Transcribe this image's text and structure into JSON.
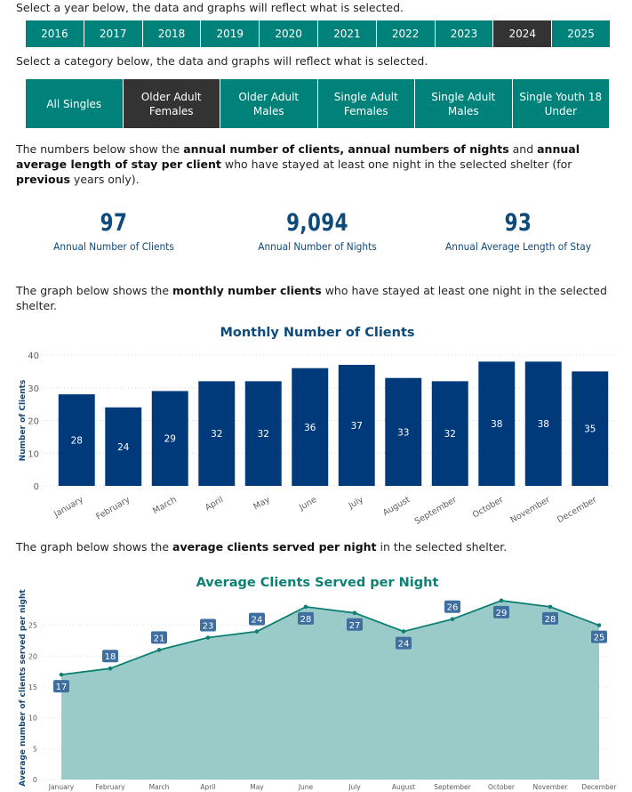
{
  "year_selector": {
    "prompt": "Select a year below, the data and graphs will reflect what is selected.",
    "years": [
      "2016",
      "2017",
      "2018",
      "2019",
      "2020",
      "2021",
      "2022",
      "2023",
      "2024",
      "2025"
    ],
    "selected": "2024"
  },
  "category_selector": {
    "prompt": "Select a category below, the data and graphs will reflect what is selected.",
    "categories": [
      "All Singles",
      "Older Adult Females",
      "Older Adult Males",
      "Single Adult Females",
      "Single Adult Males",
      "Single Youth 18 Under"
    ],
    "selected": "Older Adult Females"
  },
  "intro_text": {
    "p1": "The numbers below show the ",
    "b1": "annual number of clients, annual numbers of nights",
    "p2": " and ",
    "b2": "annual average length of stay per client",
    "p3": " who have stayed at least one night in the selected shelter (for ",
    "b3": "previous",
    "p4": " years only)."
  },
  "kpis": [
    {
      "value": "97",
      "label": "Annual Number of Clients"
    },
    {
      "value": "9,094",
      "label": "Annual Number of Nights"
    },
    {
      "value": "93",
      "label": "Annual Average Length of Stay"
    }
  ],
  "monthly_text": {
    "p1": "The graph below shows the ",
    "b1": "monthly number clients",
    "p2": " who have stayed at least one night in the selected shelter."
  },
  "avg_text": {
    "p1": "The graph below shows the ",
    "b1": "average clients served per night",
    "p2": " in the selected shelter."
  },
  "colors": {
    "teal": "#00827A",
    "selected": "#333333",
    "navy": "#0F4A7D",
    "bar": "#003A7A",
    "area": "#9BCBC9",
    "line": "#0E8073",
    "label_bg": "#3E6F9E"
  },
  "chart_data": [
    {
      "type": "bar",
      "title": "Monthly Number of Clients",
      "xlabel": "",
      "ylabel": "Number of Clients",
      "categories": [
        "January",
        "February",
        "March",
        "April",
        "May",
        "June",
        "July",
        "August",
        "September",
        "October",
        "November",
        "December"
      ],
      "values": [
        28,
        24,
        29,
        32,
        32,
        36,
        37,
        33,
        32,
        38,
        38,
        35
      ],
      "ylim": [
        0,
        40
      ],
      "yticks": [
        0,
        10,
        20,
        30,
        40
      ],
      "grid": true,
      "data_labels": true
    },
    {
      "type": "area",
      "title": "Average Clients Served per Night",
      "xlabel": "",
      "ylabel": "Average number of clients served per night",
      "categories": [
        "January",
        "February",
        "March",
        "April",
        "May",
        "June",
        "July",
        "August",
        "September",
        "October",
        "November",
        "December"
      ],
      "values": [
        17,
        18,
        21,
        23,
        24,
        28,
        27,
        24,
        26,
        29,
        28,
        25
      ],
      "ylim": [
        0,
        30
      ],
      "yticks": [
        0,
        5,
        10,
        15,
        20,
        25
      ],
      "grid": true,
      "data_labels": true
    }
  ]
}
